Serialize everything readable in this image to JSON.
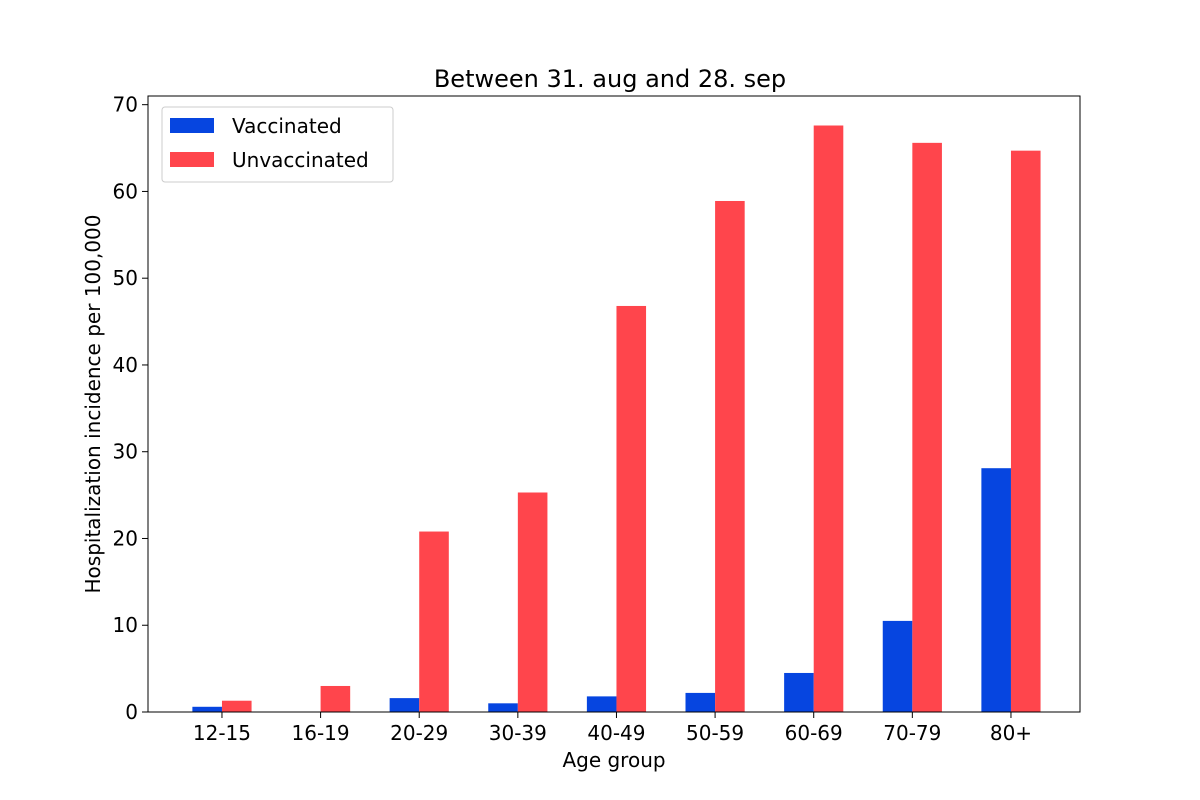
{
  "chart_data": {
    "type": "bar",
    "title": "Between 31. aug and 28. sep",
    "xlabel": "Age group",
    "ylabel": "Hospitalization incidence per 100,000",
    "categories": [
      "12-15",
      "16-19",
      "20-29",
      "30-39",
      "40-49",
      "50-59",
      "60-69",
      "70-79",
      "80+"
    ],
    "series": [
      {
        "name": "Vaccinated",
        "color": "#0645e0",
        "values": [
          0.6,
          0.0,
          1.6,
          1.0,
          1.8,
          2.2,
          4.5,
          10.5,
          28.1
        ]
      },
      {
        "name": "Unvaccinated",
        "color": "#ff454c",
        "values": [
          1.3,
          3.0,
          20.8,
          25.3,
          46.8,
          58.9,
          67.6,
          65.6,
          64.7
        ]
      }
    ],
    "ylim": [
      0,
      71
    ],
    "yticks": [
      0,
      10,
      20,
      30,
      40,
      50,
      60,
      70
    ],
    "grid": false,
    "legend_position": "top-left"
  }
}
